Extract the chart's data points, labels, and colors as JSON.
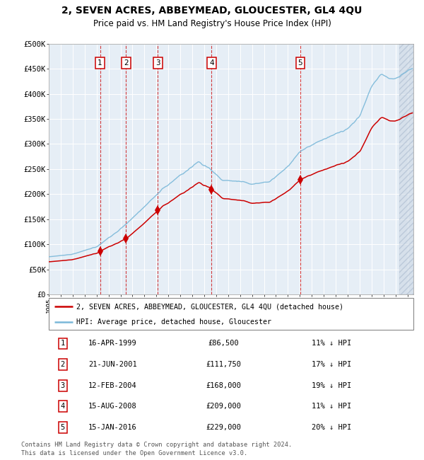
{
  "title": "2, SEVEN ACRES, ABBEYMEAD, GLOUCESTER, GL4 4QU",
  "subtitle": "Price paid vs. HM Land Registry's House Price Index (HPI)",
  "legend_line1": "2, SEVEN ACRES, ABBEYMEAD, GLOUCESTER, GL4 4QU (detached house)",
  "legend_line2": "HPI: Average price, detached house, Gloucester",
  "footer1": "Contains HM Land Registry data © Crown copyright and database right 2024.",
  "footer2": "This data is licensed under the Open Government Licence v3.0.",
  "sales": [
    {
      "num": 1,
      "date_str": "16-APR-1999",
      "year": 1999.29,
      "price": 86500,
      "pct": "11% ↓ HPI"
    },
    {
      "num": 2,
      "date_str": "21-JUN-2001",
      "year": 2001.47,
      "price": 111750,
      "pct": "17% ↓ HPI"
    },
    {
      "num": 3,
      "date_str": "12-FEB-2004",
      "year": 2004.12,
      "price": 168000,
      "pct": "19% ↓ HPI"
    },
    {
      "num": 4,
      "date_str": "15-AUG-2008",
      "year": 2008.62,
      "price": 209000,
      "pct": "11% ↓ HPI"
    },
    {
      "num": 5,
      "date_str": "15-JAN-2016",
      "year": 2016.04,
      "price": 229000,
      "pct": "20% ↓ HPI"
    }
  ],
  "hpi_color": "#7ab8d9",
  "price_color": "#cc0000",
  "plot_bg": "#e6eef6",
  "ylim": [
    0,
    500000
  ],
  "xlim_start": 1995.0,
  "xlim_end": 2025.5,
  "yticks": [
    0,
    50000,
    100000,
    150000,
    200000,
    250000,
    300000,
    350000,
    400000,
    450000,
    500000
  ],
  "ytick_labels": [
    "£0",
    "£50K",
    "£100K",
    "£150K",
    "£200K",
    "£250K",
    "£300K",
    "£350K",
    "£400K",
    "£450K",
    "£500K"
  ]
}
